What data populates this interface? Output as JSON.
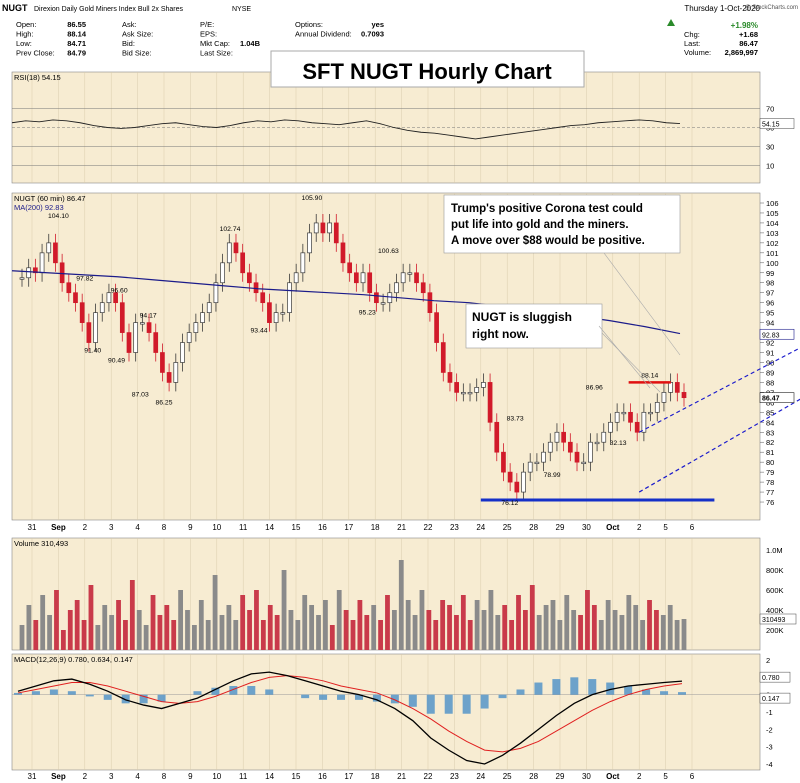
{
  "header": {
    "symbol": "NUGT",
    "name": "Direxion Daily Gold Miners Index Bull 2x Shares",
    "exchange": "NYSE",
    "date": "Thursday  1-Oct-2020",
    "copyright": "@ StockCharts.com",
    "fields": [
      {
        "label": "Open:",
        "value": "86.55"
      },
      {
        "label": "High:",
        "value": "88.14"
      },
      {
        "label": "Low:",
        "value": "84.71"
      },
      {
        "label": "Prev Close:",
        "value": "84.79"
      },
      {
        "label": "Ask:",
        "value": ""
      },
      {
        "label": "Ask Size:",
        "value": ""
      },
      {
        "label": "Bid:",
        "value": ""
      },
      {
        "label": "Bid Size:",
        "value": ""
      },
      {
        "label": "P/E:",
        "value": ""
      },
      {
        "label": "EPS:",
        "value": ""
      },
      {
        "label": "Mkt Cap:",
        "value": "1.04B"
      },
      {
        "label": "Last Size:",
        "value": ""
      },
      {
        "label": "Options:",
        "value": "yes"
      },
      {
        "label": "Annual Dividend:",
        "value": "0.7093"
      }
    ],
    "change_pct": "+1.98%",
    "chg_label": "Chg:",
    "chg": "+1.68",
    "last_label": "Last:",
    "last": "86.47",
    "volume_label": "Volume:",
    "volume": "2,869,997"
  },
  "title_box": "SFT NUGT Hourly Chart",
  "annotations": {
    "trump": "Trump's positive Corona test could put life into gold and the miners.  A move over $88 would be positive.",
    "sluggish": "NUGT is sluggish right now."
  },
  "colors": {
    "bg_panel": "#f7ecd2",
    "up": "#3a3a3a",
    "down": "#d11a2a",
    "ma": "#1b1b8a",
    "channel": "#1a1acc",
    "support": "#1530c8",
    "resist": "#e01010",
    "rsi_line": "#222222",
    "macd": "#000000",
    "signal": "#e02020",
    "hist": "#4a90c8",
    "vol_up": "#8a8a8a",
    "vol_down": "#c93a4a"
  },
  "chart_data": {
    "type": "candlestick",
    "timeframe": "60 min",
    "x_ticks": [
      "31",
      "Sep",
      "2",
      "3",
      "4",
      "8",
      "9",
      "10",
      "11",
      "14",
      "15",
      "16",
      "17",
      "18",
      "21",
      "22",
      "23",
      "24",
      "25",
      "28",
      "29",
      "30",
      "Oct",
      "2",
      "5",
      "6"
    ],
    "price": {
      "legend": "NUGT (60 min) 86.47",
      "ma_legend": "MA(200) 92.83",
      "ylim": [
        75,
        106
      ],
      "y_ticks": [
        "106",
        "105",
        "104",
        "103",
        "102",
        "101",
        "100",
        "99",
        "98",
        "97",
        "96",
        "95",
        "94",
        "93",
        "92",
        "91",
        "90",
        "89",
        "88",
        "87",
        "86",
        "85",
        "84",
        "83",
        "82",
        "81",
        "80",
        "79",
        "78",
        "77",
        "76"
      ],
      "last_tag": "86.47",
      "ma_tag": "92.83",
      "point_labels": [
        "104.10",
        "97.82",
        "96.60",
        "91.40",
        "90.49",
        "94.17",
        "87.03",
        "86.25",
        "102.74",
        "93.44",
        "105.90",
        "95.23",
        "100.63",
        "83.73",
        "78.99",
        "76.12",
        "86.96",
        "82.13",
        "88.14"
      ],
      "closes": [
        98.5,
        99.5,
        99,
        101,
        102,
        100,
        98,
        97,
        96,
        94,
        92,
        95,
        96,
        97,
        96,
        93,
        91,
        94,
        94,
        93,
        91,
        89,
        88,
        90,
        92,
        93,
        94,
        95,
        96,
        98,
        100,
        102,
        101,
        99,
        98,
        97,
        96,
        94,
        95,
        95,
        98,
        99,
        101,
        103,
        104,
        103,
        104,
        102,
        100,
        99,
        98,
        99,
        97,
        96,
        96,
        97,
        98,
        99,
        99,
        98,
        97,
        95,
        92,
        89,
        88,
        87,
        87,
        87,
        87.5,
        88,
        84,
        81,
        79,
        78,
        77,
        79,
        80,
        80,
        81,
        82,
        83,
        82,
        81,
        80,
        80,
        82,
        82,
        83,
        84,
        85,
        85,
        84,
        83,
        85,
        85,
        86,
        87,
        88,
        87,
        86.47
      ],
      "ma200": [
        99.2,
        99,
        98.8,
        98.6,
        98.3,
        98,
        97.7,
        97.4,
        97.2,
        97,
        96.8,
        96.5,
        96.2,
        96,
        95.6,
        95.2,
        94.7,
        94.2,
        93.6,
        92.9
      ],
      "channel_lower": [
        [
          23.0,
          77.0
        ],
        [
          "30.2",
          88.0
        ]
      ],
      "channel_upper": [
        [
          23.0,
          83.0
        ],
        [
          30.2,
          93.0
        ]
      ],
      "support": 76.2,
      "resistance": 88.0
    },
    "rsi": {
      "legend": "RSI(18) 54.15",
      "ylim": [
        0,
        100
      ],
      "y_ticks": [
        "70",
        "50",
        "30",
        "10"
      ],
      "last_tag": "54.15",
      "values": [
        55,
        57,
        56,
        58,
        57,
        55,
        52,
        50,
        49,
        50,
        52,
        54,
        55,
        53,
        51,
        50,
        52,
        55,
        57,
        56,
        58,
        57,
        55,
        54,
        53,
        55,
        57,
        54,
        50,
        47,
        45,
        44,
        42,
        40,
        38,
        40,
        42,
        44,
        46,
        48,
        50,
        52,
        53,
        55,
        56,
        57,
        58,
        57,
        55,
        54.15
      ]
    },
    "volume": {
      "legend": "Volume 310,493",
      "y_ticks": [
        "1.0M",
        "800K",
        "600K",
        "400K",
        "200K"
      ],
      "last_tag": "310493",
      "values": [
        0.25,
        0.45,
        0.3,
        0.55,
        0.35,
        0.6,
        0.2,
        0.4,
        0.5,
        0.3,
        0.65,
        0.25,
        0.45,
        0.35,
        0.5,
        0.3,
        0.7,
        0.4,
        0.25,
        0.55,
        0.35,
        0.45,
        0.3,
        0.6,
        0.4,
        0.25,
        0.5,
        0.3,
        0.75,
        0.35,
        0.45,
        0.3,
        0.55,
        0.4,
        0.6,
        0.3,
        0.45,
        0.35,
        0.8,
        0.4,
        0.3,
        0.55,
        0.45,
        0.35,
        0.5,
        0.25,
        0.6,
        0.4,
        0.3,
        0.5,
        0.35,
        0.45,
        0.3,
        0.55,
        0.4,
        0.9,
        0.5,
        0.35,
        0.6,
        0.4,
        0.3,
        0.5,
        0.45,
        0.35,
        0.55,
        0.3,
        0.5,
        0.4,
        0.6,
        0.35,
        0.45,
        0.3,
        0.55,
        0.4,
        0.65,
        0.35,
        0.45,
        0.5,
        0.3,
        0.55,
        0.4,
        0.35,
        0.6,
        0.45,
        0.3,
        0.5,
        0.4,
        0.35,
        0.55,
        0.45,
        0.3,
        0.5,
        0.4,
        0.35,
        0.45,
        0.3,
        0.31
      ]
    },
    "macd": {
      "legend": "MACD(12,26,9) 0.780, 0.634, 0.147",
      "ylim": [
        -4,
        2
      ],
      "y_ticks": [
        "2",
        "1",
        "0",
        "-1",
        "-2",
        "-3",
        "-4"
      ],
      "last_tags": [
        "0.780",
        "0.147"
      ],
      "macd": [
        0.2,
        0.5,
        0.8,
        0.9,
        0.6,
        0.2,
        -0.3,
        -0.6,
        -0.8,
        -0.5,
        -0.2,
        0.3,
        0.8,
        1.2,
        1.3,
        1.1,
        0.8,
        0.5,
        0.2,
        0,
        -0.3,
        -0.8,
        -1.5,
        -2.5,
        -3.2,
        -3.8,
        -4.0,
        -3.5,
        -2.8,
        -2.0,
        -1.2,
        -0.5,
        0,
        0.3,
        0.5,
        0.6,
        0.7,
        0.78
      ],
      "signal": [
        0.1,
        0.3,
        0.5,
        0.7,
        0.7,
        0.5,
        0.2,
        -0.1,
        -0.4,
        -0.5,
        -0.4,
        -0.1,
        0.3,
        0.7,
        1.0,
        1.1,
        1.0,
        0.8,
        0.5,
        0.3,
        0.1,
        -0.3,
        -0.8,
        -1.4,
        -2.1,
        -2.7,
        -3.2,
        -3.3,
        -3.1,
        -2.7,
        -2.1,
        -1.5,
        -0.9,
        -0.4,
        0,
        0.3,
        0.5,
        0.634
      ],
      "hist": [
        0.1,
        0.2,
        0.3,
        0.2,
        -0.1,
        -0.3,
        -0.5,
        -0.5,
        -0.4,
        0,
        0.2,
        0.4,
        0.5,
        0.5,
        0.3,
        0,
        -0.2,
        -0.3,
        -0.3,
        -0.3,
        -0.4,
        -0.5,
        -0.7,
        -1.1,
        -1.1,
        -1.1,
        -0.8,
        -0.2,
        0.3,
        0.7,
        0.9,
        1.0,
        0.9,
        0.7,
        0.5,
        0.3,
        0.2,
        0.147
      ]
    }
  }
}
